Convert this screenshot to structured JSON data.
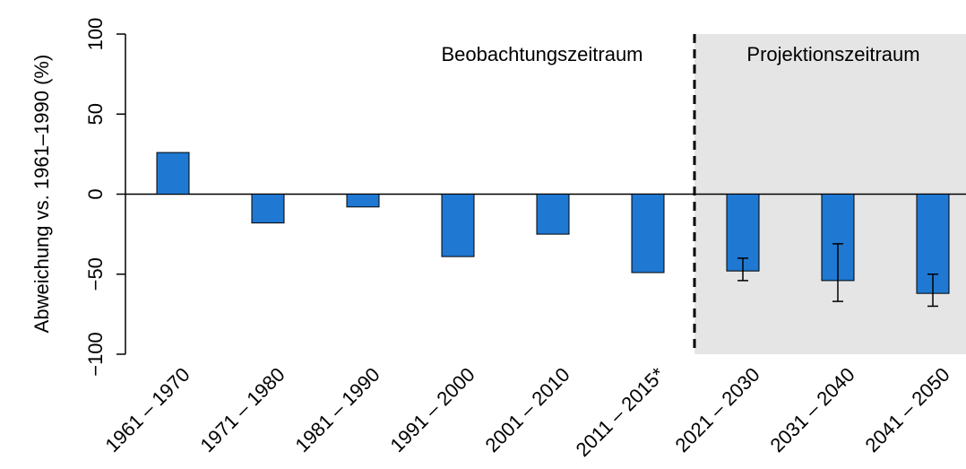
{
  "chart_data": {
    "type": "bar",
    "y_label": "Abweichung vs. 1961–1990 (%)",
    "annotations": [
      "Beobachtungszeitraum",
      "Projektionszeitraum"
    ],
    "categories": [
      "1961 – 1970",
      "1971 – 1980",
      "1981 – 1990",
      "1991 – 2000",
      "2001 – 2010",
      "2011 – 2015*",
      "2021 – 2030",
      "2031 – 2040",
      "2041 – 2050"
    ],
    "values": [
      26,
      -18,
      -8,
      -39,
      -25,
      -49,
      -48,
      -54,
      -62
    ],
    "error_low": [
      null,
      null,
      null,
      null,
      null,
      null,
      -54,
      -67,
      -70
    ],
    "error_high": [
      null,
      null,
      null,
      null,
      null,
      null,
      -40,
      -31,
      -50
    ],
    "color": "#1f78d1",
    "ylim": [
      -100,
      100
    ],
    "yticks": [
      {
        "value": -100,
        "label": "−100"
      },
      {
        "value": -50,
        "label": "−50"
      },
      0,
      50,
      100
    ]
  }
}
